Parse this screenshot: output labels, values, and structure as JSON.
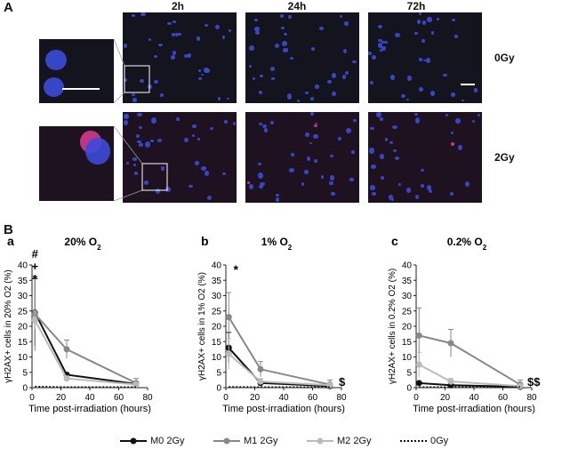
{
  "panels": {
    "A": "A",
    "B": "B"
  },
  "micro": {
    "time_labels": [
      "2h",
      "24h",
      "72h"
    ],
    "dose_labels": [
      "0Gy",
      "2Gy"
    ]
  },
  "colors": {
    "M0": "#111111",
    "M1": "#888888",
    "M2": "#bbbbbb",
    "nuclei": "#3b4bd8",
    "foci": "#c8306a"
  },
  "chart_data": [
    {
      "type": "line",
      "sub_letter": "a",
      "title": "20% O2",
      "title_main": "20% O",
      "title_sub": "2",
      "ylabel": "γH2AX+ cells in 20% O2 (%)",
      "xlabel": "Time post-irradiation (hours)",
      "xlim": [
        0,
        80
      ],
      "ylim": [
        0,
        40
      ],
      "xticks": [
        "0",
        "20",
        "40",
        "60",
        "80"
      ],
      "yticks": [
        "0",
        "5",
        "10",
        "15",
        "20",
        "25",
        "30",
        "35",
        "40"
      ],
      "x": [
        2,
        24,
        72
      ],
      "series": [
        {
          "name": "M0 2Gy",
          "values": [
            24.5,
            4.2,
            1.2
          ],
          "err": [
            11,
            0.6,
            0.5
          ]
        },
        {
          "name": "M1 2Gy",
          "values": [
            24.0,
            12.5,
            1.5
          ],
          "err": [
            12,
            3,
            1.5
          ]
        },
        {
          "name": "M2 2Gy",
          "values": [
            22.0,
            3.0,
            1.0
          ],
          "err": [
            3,
            0.8,
            0.5
          ]
        },
        {
          "name": "0Gy",
          "values": [
            0.4,
            0.2,
            0.2
          ],
          "err": [
            0.2,
            0.1,
            0.1
          ]
        }
      ],
      "annotations": [
        "#",
        "+",
        "*"
      ]
    },
    {
      "type": "line",
      "sub_letter": "b",
      "title": "1% O2",
      "title_main": "1% O",
      "title_sub": "2",
      "ylabel": "γH2AX+ cells in 1% O2 (%)",
      "xlabel": "Time post-irradiation (hours)",
      "xlim": [
        0,
        80
      ],
      "ylim": [
        0,
        40
      ],
      "xticks": [
        "0",
        "20",
        "40",
        "60",
        "80"
      ],
      "yticks": [
        "0",
        "5",
        "10",
        "15",
        "20",
        "25",
        "30",
        "35",
        "40"
      ],
      "x": [
        2,
        24,
        72
      ],
      "series": [
        {
          "name": "M0 2Gy",
          "values": [
            13.0,
            1.5,
            0.5
          ],
          "err": [
            5,
            0.5,
            0.3
          ]
        },
        {
          "name": "M1 2Gy",
          "values": [
            23.0,
            6.0,
            1.0
          ],
          "err": [
            8,
            2.5,
            1.5
          ]
        },
        {
          "name": "M2 2Gy",
          "values": [
            11.0,
            2.0,
            0.8
          ],
          "err": [
            5,
            1,
            0.5
          ]
        },
        {
          "name": "0Gy",
          "values": [
            0.3,
            0.2,
            0.2
          ],
          "err": [
            0.1,
            0.1,
            0.1
          ]
        }
      ],
      "annotations": [
        "*",
        "$"
      ]
    },
    {
      "type": "line",
      "sub_letter": "c",
      "title": "0.2% O2",
      "title_main": "0.2% O",
      "title_sub": "2",
      "ylabel": "γH2AX+ cells in 0.2% O2 (%)",
      "xlabel": "Time post-irradiation (hours)",
      "xlim": [
        0,
        80
      ],
      "ylim": [
        0,
        40
      ],
      "xticks": [
        "0",
        "20",
        "40",
        "60",
        "80"
      ],
      "yticks": [
        "0",
        "5",
        "10",
        "15",
        "20",
        "25",
        "30",
        "35",
        "40"
      ],
      "x": [
        2,
        24,
        72
      ],
      "series": [
        {
          "name": "M0 2Gy",
          "values": [
            1.5,
            0.8,
            0.3
          ],
          "err": [
            0.5,
            0.3,
            0.2
          ]
        },
        {
          "name": "M1 2Gy",
          "values": [
            17.0,
            14.5,
            1.0
          ],
          "err": [
            9,
            4.5,
            1.5
          ]
        },
        {
          "name": "M2 2Gy",
          "values": [
            7.5,
            2.0,
            0.5
          ],
          "err": [
            4,
            1,
            0.3
          ]
        },
        {
          "name": "0Gy",
          "values": [
            0.2,
            0.2,
            0.2
          ],
          "err": [
            0.1,
            0.1,
            0.1
          ]
        }
      ],
      "annotations": [
        "$$"
      ]
    }
  ],
  "legend": [
    {
      "label": "M0 2Gy",
      "style": "M0"
    },
    {
      "label": "M1 2Gy",
      "style": "M1"
    },
    {
      "label": "M2 2Gy",
      "style": "M2"
    },
    {
      "label": "0Gy",
      "style": "dotted"
    }
  ]
}
